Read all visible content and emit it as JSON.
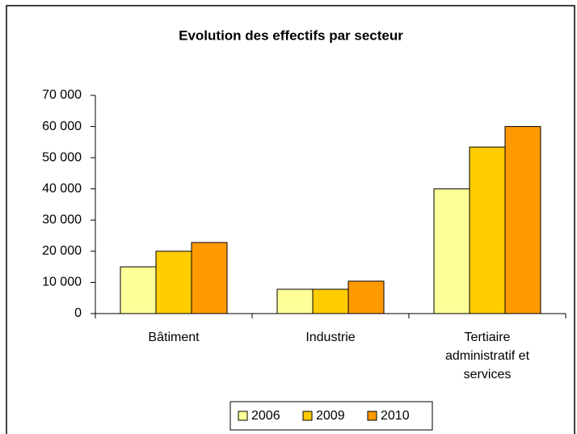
{
  "chart_data": {
    "type": "bar",
    "title": "Evolution des effectifs par secteur",
    "categories": [
      "Bâtiment",
      "Industrie",
      "Tertiaire administratif et services"
    ],
    "series": [
      {
        "name": "2006",
        "color": "#ffff99",
        "values": [
          15000,
          7800,
          40000
        ]
      },
      {
        "name": "2009",
        "color": "#ffcc00",
        "values": [
          20000,
          7800,
          53400
        ]
      },
      {
        "name": "2010",
        "color": "#ff9900",
        "values": [
          22800,
          10400,
          60000
        ]
      }
    ],
    "ylim": [
      0,
      70000
    ],
    "yticks": [
      0,
      {
        "value": 10000,
        "label": "10 000"
      },
      {
        "value": 20000,
        "label": "20 000"
      },
      {
        "value": 30000,
        "label": "30 000"
      },
      {
        "value": 40000,
        "label": "40 000"
      },
      {
        "value": 50000,
        "label": "50 000"
      },
      {
        "value": 60000,
        "label": "60 000"
      },
      {
        "value": 70000,
        "label": "70 000"
      }
    ],
    "grid": false,
    "legend": "bottom"
  }
}
